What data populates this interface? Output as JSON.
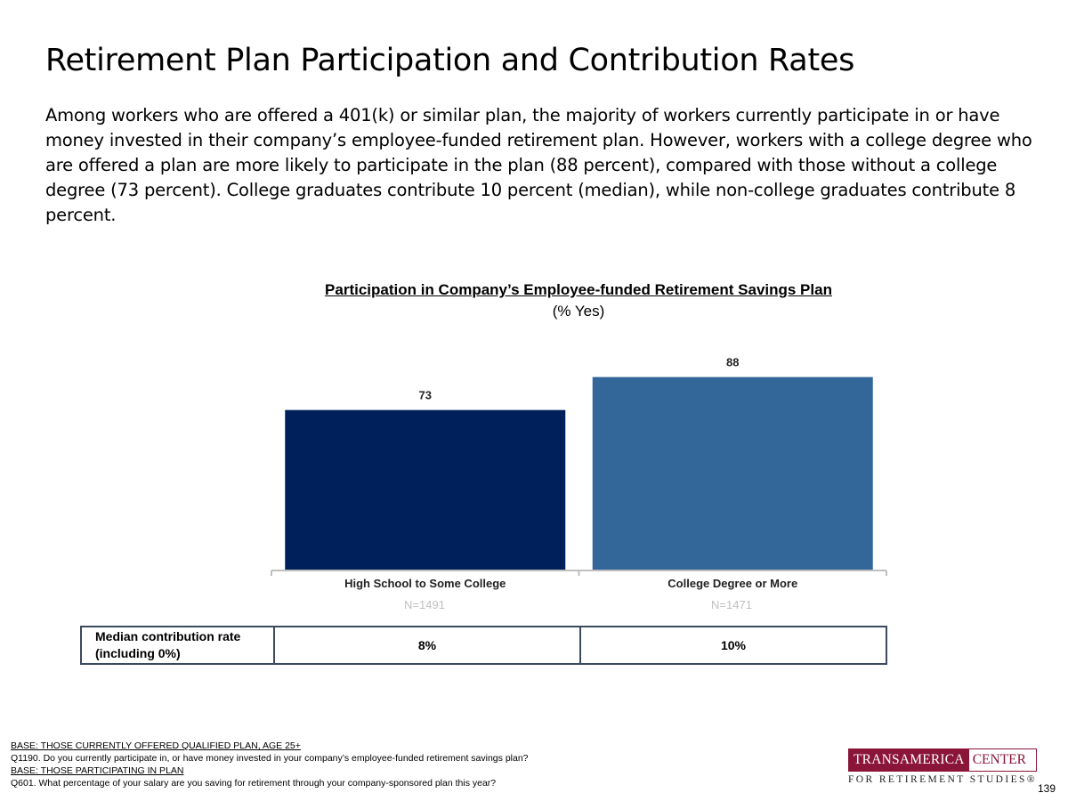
{
  "page": {
    "title": "Retirement Plan Participation and Contribution Rates",
    "intro": "Among workers who are offered a 401(k) or similar plan, the majority of workers currently participate in or have money invested in their company’s employee-funded retirement plan. However, workers with a college degree who are offered a plan are more likely to participate in the plan (88 percent), compared with those without a college degree (73 percent). College graduates contribute 10 percent (median), while non-college graduates contribute 8 percent.",
    "page_number": "139"
  },
  "chart_data": {
    "type": "bar",
    "title": "Participation in Company’s Employee-funded Retirement Savings Plan",
    "subtitle": "(% Yes)",
    "categories": [
      "High School to Some College",
      "College Degree or More"
    ],
    "values": [
      73,
      88
    ],
    "sample_sizes": [
      "N=1491",
      "N=1471"
    ],
    "colors": [
      "#00205b",
      "#336699"
    ],
    "ylim": [
      0,
      100
    ],
    "xlabel": "",
    "ylabel": ""
  },
  "median_table": {
    "label": "Median contribution rate (including 0%)",
    "values": [
      "8%",
      "10%"
    ]
  },
  "footer": {
    "base1": "BASE: THOSE CURRENTLY OFFERED QUALIFIED PLAN, AGE 25+",
    "q1": "Q1190. Do you currently participate in, or have money invested in your company’s employee-funded retirement savings plan?",
    "base2": "BASE: THOSE PARTICIPATING IN PLAN",
    "q2": "Q601. What percentage of your salary are you saving for retirement through your company-sponsored plan this year?"
  },
  "logo": {
    "brand": "TRANSAMERICA",
    "center": "CENTER",
    "tagline": "FOR RETIREMENT STUDIES®"
  }
}
